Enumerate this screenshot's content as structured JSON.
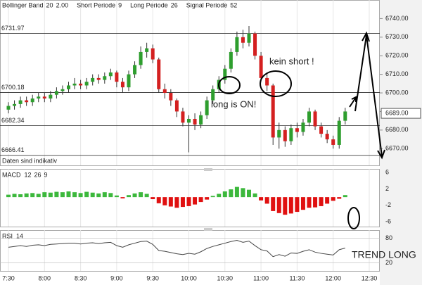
{
  "chart_data": [
    {
      "type": "candlestick",
      "indicators": [
        {
          "name": "Bollinger Band",
          "params": [
            "20",
            "2.00"
          ]
        },
        {
          "name": "Short Periode",
          "params": [
            "9"
          ]
        },
        {
          "name": "Long Periode",
          "params": [
            "26"
          ]
        },
        {
          "name": "Signal Periode",
          "params": [
            "52"
          ]
        }
      ],
      "categories": [
        "7:30",
        null,
        null,
        null,
        null,
        null,
        "8:00",
        null,
        null,
        null,
        null,
        null,
        "8:30",
        null,
        null,
        null,
        null,
        null,
        "9:00",
        null,
        null,
        null,
        null,
        null,
        "9:30",
        null,
        null,
        null,
        null,
        null,
        "10:00",
        null,
        null,
        null,
        null,
        null,
        "10:30",
        null,
        null,
        null,
        null,
        null,
        "11:00",
        null,
        null,
        null,
        null,
        null,
        "11:30",
        null,
        null,
        null,
        null,
        null,
        "12:00",
        null,
        null,
        null,
        null,
        null,
        "12:30"
      ],
      "open": [
        6691,
        6693,
        6694,
        6696,
        6695,
        6697,
        6698,
        6697,
        6699,
        6701,
        6702,
        6704,
        6705,
        6704,
        6706,
        6708,
        6707,
        6709,
        6711,
        6706,
        6703,
        6710,
        6715,
        6722,
        6724,
        6718,
        6702,
        6700,
        6696,
        6690,
        6684,
        6686,
        6683,
        6688,
        6696,
        6702,
        6707,
        6713,
        6722,
        6730,
        6727,
        6732,
        6720,
        6708,
        6704,
        6676,
        6680,
        6674,
        6681,
        6679,
        6684,
        6690,
        6682,
        6678,
        6675,
        6672,
        6685,
        null,
        null,
        null,
        null
      ],
      "high": [
        6695,
        6696,
        6698,
        6698,
        6699,
        6700,
        6700,
        6701,
        6703,
        6704,
        6706,
        6708,
        6707,
        6708,
        6710,
        6710,
        6711,
        6713,
        6712,
        6708,
        6712,
        6717,
        6725,
        6727,
        6726,
        6719,
        6705,
        6702,
        6697,
        6692,
        6688,
        6689,
        6690,
        6698,
        6704,
        6709,
        6715,
        6724,
        6733,
        6734,
        6736,
        6733,
        6722,
        6711,
        6705,
        6684,
        6682,
        6683,
        6684,
        6686,
        6692,
        6691,
        6684,
        6680,
        6677,
        6687,
        6692,
        null,
        null,
        null,
        null
      ],
      "low": [
        6689,
        6691,
        6692,
        6693,
        6693,
        6695,
        6695,
        6695,
        6697,
        6699,
        6700,
        6702,
        6702,
        6702,
        6704,
        6705,
        6705,
        6707,
        6703,
        6700,
        6701,
        6708,
        6713,
        6719,
        6716,
        6700,
        6697,
        6693,
        6687,
        6682,
        6668,
        6680,
        6681,
        6686,
        6694,
        6700,
        6705,
        6711,
        6720,
        6724,
        6725,
        6718,
        6706,
        6701,
        6672,
        6670,
        6671,
        6672,
        6676,
        6677,
        6682,
        6680,
        6676,
        6673,
        6670,
        6670,
        6683,
        null,
        null,
        null,
        null
      ],
      "close": [
        6693,
        6694,
        6696,
        6695,
        6697,
        6698,
        6697,
        6699,
        6701,
        6702,
        6704,
        6705,
        6704,
        6706,
        6708,
        6707,
        6709,
        6711,
        6706,
        6703,
        6710,
        6715,
        6722,
        6724,
        6718,
        6702,
        6700,
        6696,
        6690,
        6684,
        6686,
        6683,
        6688,
        6696,
        6702,
        6707,
        6713,
        6722,
        6730,
        6727,
        6732,
        6720,
        6708,
        6704,
        6676,
        6680,
        6674,
        6681,
        6679,
        6684,
        6690,
        6682,
        6678,
        6675,
        6672,
        6685,
        6690,
        null,
        null,
        null,
        null
      ],
      "color_up": "#2e9e2e",
      "color_down": "#d42020",
      "ylim": [
        6661,
        6750
      ],
      "yticks": [
        {
          "value": 6670,
          "label": "6670.00"
        },
        {
          "value": 6680,
          "label": "6680.00"
        },
        {
          "value": 6690,
          "label": "6690.00"
        },
        {
          "value": 6700,
          "label": "6700.00"
        },
        {
          "value": 6710,
          "label": "6710.00"
        },
        {
          "value": 6720,
          "label": "6720.00"
        },
        {
          "value": 6730,
          "label": "6730.00"
        },
        {
          "value": 6740,
          "label": "6740.00"
        }
      ],
      "levels": [
        6731.97,
        6700.18,
        6682.34,
        6666.41
      ],
      "current": {
        "value": 6689,
        "label": "6689.00"
      },
      "note": "Daten sind indikativ",
      "annotations": [
        "kein short !",
        "long is ON!",
        "TREND LONG"
      ],
      "grid": true
    },
    {
      "type": "bar",
      "title": "MACD",
      "params": [
        "12",
        "26",
        "9"
      ],
      "values": [
        0.6,
        0.8,
        0.7,
        0.9,
        1.0,
        0.8,
        1.2,
        1.1,
        1.3,
        1.2,
        1.4,
        1.2,
        1.0,
        1.3,
        1.1,
        0.9,
        1.2,
        1.0,
        0.4,
        -0.3,
        0.5,
        0.9,
        1.2,
        0.8,
        -0.5,
        -1.5,
        -2.0,
        -2.3,
        -2.6,
        -2.4,
        -2.2,
        -1.8,
        -1.2,
        -0.6,
        0.3,
        0.8,
        1.4,
        1.9,
        2.5,
        2.2,
        1.8,
        0.9,
        -0.8,
        -1.6,
        -3.4,
        -3.9,
        -4.3,
        -4.0,
        -3.6,
        -3.1,
        -2.6,
        -2.5,
        -2.2,
        -1.6,
        -0.9,
        -0.4,
        0.5,
        null,
        null,
        null,
        null
      ],
      "color_up": "#3cb83c",
      "color_down": "#e01010",
      "ylim": [
        -7.2,
        6.9
      ],
      "yticks": [
        6,
        2,
        -2,
        -6
      ]
    },
    {
      "type": "line",
      "title": "RSI",
      "params": [
        "14"
      ],
      "values": [
        58,
        60,
        62,
        60,
        63,
        64,
        62,
        65,
        66,
        67,
        68,
        68,
        66,
        68,
        69,
        67,
        69,
        70,
        62,
        58,
        64,
        68,
        72,
        73,
        65,
        50,
        48,
        45,
        42,
        40,
        43,
        41,
        47,
        55,
        60,
        64,
        68,
        72,
        75,
        70,
        73,
        62,
        52,
        49,
        35,
        40,
        36,
        44,
        43,
        48,
        52,
        46,
        43,
        41,
        39,
        52,
        56,
        null,
        null,
        null,
        null
      ],
      "color": "#444444",
      "ylim": [
        0,
        100
      ],
      "yticks": [
        80,
        20
      ]
    }
  ]
}
